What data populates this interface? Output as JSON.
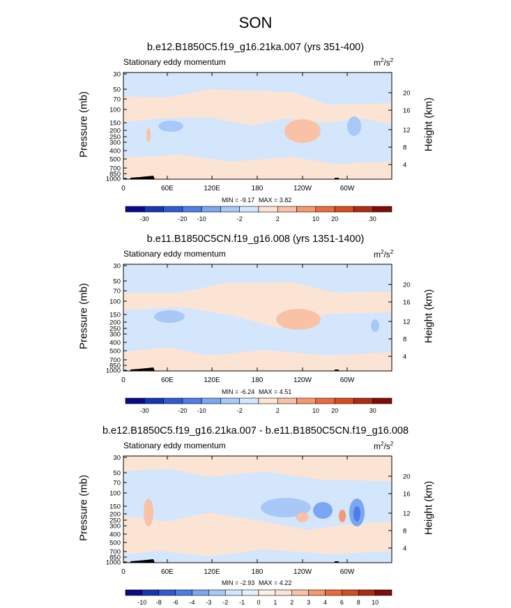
{
  "title": "SON",
  "chart_data": [
    {
      "type": "heatmap",
      "title": "b.e12.B1850C5.f19_g16.21ka.007 (yrs 351-400)",
      "subtitle_left": "Stationary eddy momentum",
      "units": "m2/s2",
      "ylabel_left": "Pressure (mb)",
      "ylabel_right": "Height (km)",
      "xticks": [
        "0",
        "60E",
        "120E",
        "180",
        "120W",
        "60W"
      ],
      "yticks_left": [
        "30",
        "50",
        "70",
        "100",
        "150",
        "200",
        "250",
        "300",
        "400",
        "500",
        "700",
        "850",
        "1000"
      ],
      "yticks_right": [
        "20",
        "16",
        "12",
        "8",
        "4"
      ],
      "min": "MIN = -9.17",
      "max": "MAX = 3.82",
      "colorbar_labels": [
        "-30",
        "-20",
        "-10",
        "-2",
        "2",
        "10",
        "20",
        "30"
      ],
      "colorbar_colors": [
        "#0a0a8c",
        "#1636b4",
        "#2e5ad6",
        "#4b7fe6",
        "#7aa6f2",
        "#a8c8f8",
        "#d4e6fc",
        "#fce4d4",
        "#f9c2a6",
        "#f4986e",
        "#ec6a3c",
        "#d64c20",
        "#b02a12",
        "#7e0c08"
      ]
    },
    {
      "type": "heatmap",
      "title": "b.e11.B1850C5CN.f19_g16.008 (yrs 1351-1400)",
      "subtitle_left": "Stationary eddy momentum",
      "units": "m2/s2",
      "ylabel_left": "Pressure (mb)",
      "ylabel_right": "Height (km)",
      "xticks": [
        "0",
        "60E",
        "120E",
        "180",
        "120W",
        "60W"
      ],
      "yticks_left": [
        "30",
        "50",
        "70",
        "100",
        "150",
        "200",
        "250",
        "300",
        "400",
        "500",
        "700",
        "850",
        "1000"
      ],
      "yticks_right": [
        "20",
        "16",
        "12",
        "8",
        "4"
      ],
      "min": "MIN = -6.24",
      "max": "MAX = 4.51",
      "colorbar_labels": [
        "-30",
        "-20",
        "-10",
        "-2",
        "2",
        "10",
        "20",
        "30"
      ],
      "colorbar_colors": [
        "#0a0a8c",
        "#1636b4",
        "#2e5ad6",
        "#4b7fe6",
        "#7aa6f2",
        "#a8c8f8",
        "#d4e6fc",
        "#fce4d4",
        "#f9c2a6",
        "#f4986e",
        "#ec6a3c",
        "#d64c20",
        "#b02a12",
        "#7e0c08"
      ]
    },
    {
      "type": "heatmap",
      "title": "b.e12.B1850C5.f19_g16.21ka.007 - b.e11.B1850C5CN.f19_g16.008",
      "subtitle_left": "Stationary eddy momentum",
      "units": "m2/s2",
      "ylabel_left": "Pressure (mb)",
      "ylabel_right": "Height (km)",
      "xticks": [
        "0",
        "60E",
        "120E",
        "180",
        "120W",
        "60W"
      ],
      "yticks_left": [
        "30",
        "50",
        "70",
        "100",
        "150",
        "200",
        "250",
        "300",
        "400",
        "500",
        "700",
        "850",
        "1000"
      ],
      "yticks_right": [
        "20",
        "16",
        "12",
        "8",
        "4"
      ],
      "min": "MIN = -2.93",
      "max": "MAX = 4.22",
      "colorbar_labels": [
        "-10",
        "-8",
        "-6",
        "-4",
        "-3",
        "-2",
        "-1",
        "0",
        "1",
        "2",
        "3",
        "4",
        "6",
        "8",
        "10"
      ],
      "colorbar_colors": [
        "#0a0a8c",
        "#1636b4",
        "#2e5ad6",
        "#4b7fe6",
        "#7aa6f2",
        "#a8c8f8",
        "#d4e6fc",
        "#e6f0fc",
        "#fcefe4",
        "#fce4d4",
        "#f9c2a6",
        "#f4986e",
        "#ec6a3c",
        "#d64c20",
        "#b02a12",
        "#7e0c08"
      ]
    }
  ]
}
